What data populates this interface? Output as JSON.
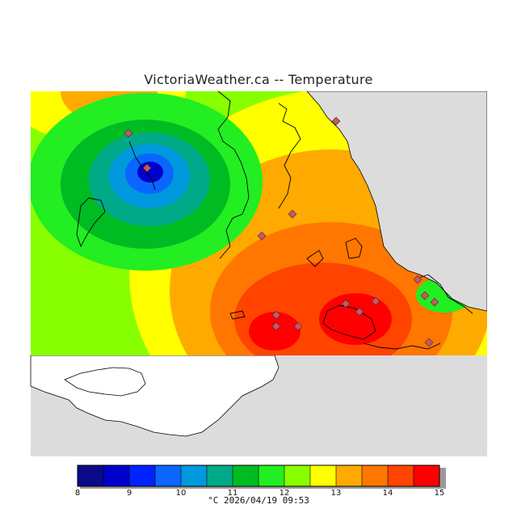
{
  "title": "VictoriaWeather.ca -- Temperature",
  "timestamp_line": "°C  2026/04/19 09:53",
  "legend": {
    "unit": "°C",
    "ticks": [
      "8",
      "9",
      "10",
      "11",
      "12",
      "13",
      "14",
      "15"
    ],
    "colors": [
      "#0a0a8a",
      "#0000cc",
      "#0022ff",
      "#0a66ff",
      "#0099dd",
      "#00aa88",
      "#00bb22",
      "#22ee22",
      "#88ff00",
      "#ffff00",
      "#ffaa00",
      "#ff7700",
      "#ff4400",
      "#ff0000"
    ]
  },
  "colors": {
    "land_background": "#dcdcdc",
    "water": "#ffffff",
    "coastline": "#000000",
    "station_marker": "#cc5566"
  },
  "map": {
    "stations_count": 15
  }
}
